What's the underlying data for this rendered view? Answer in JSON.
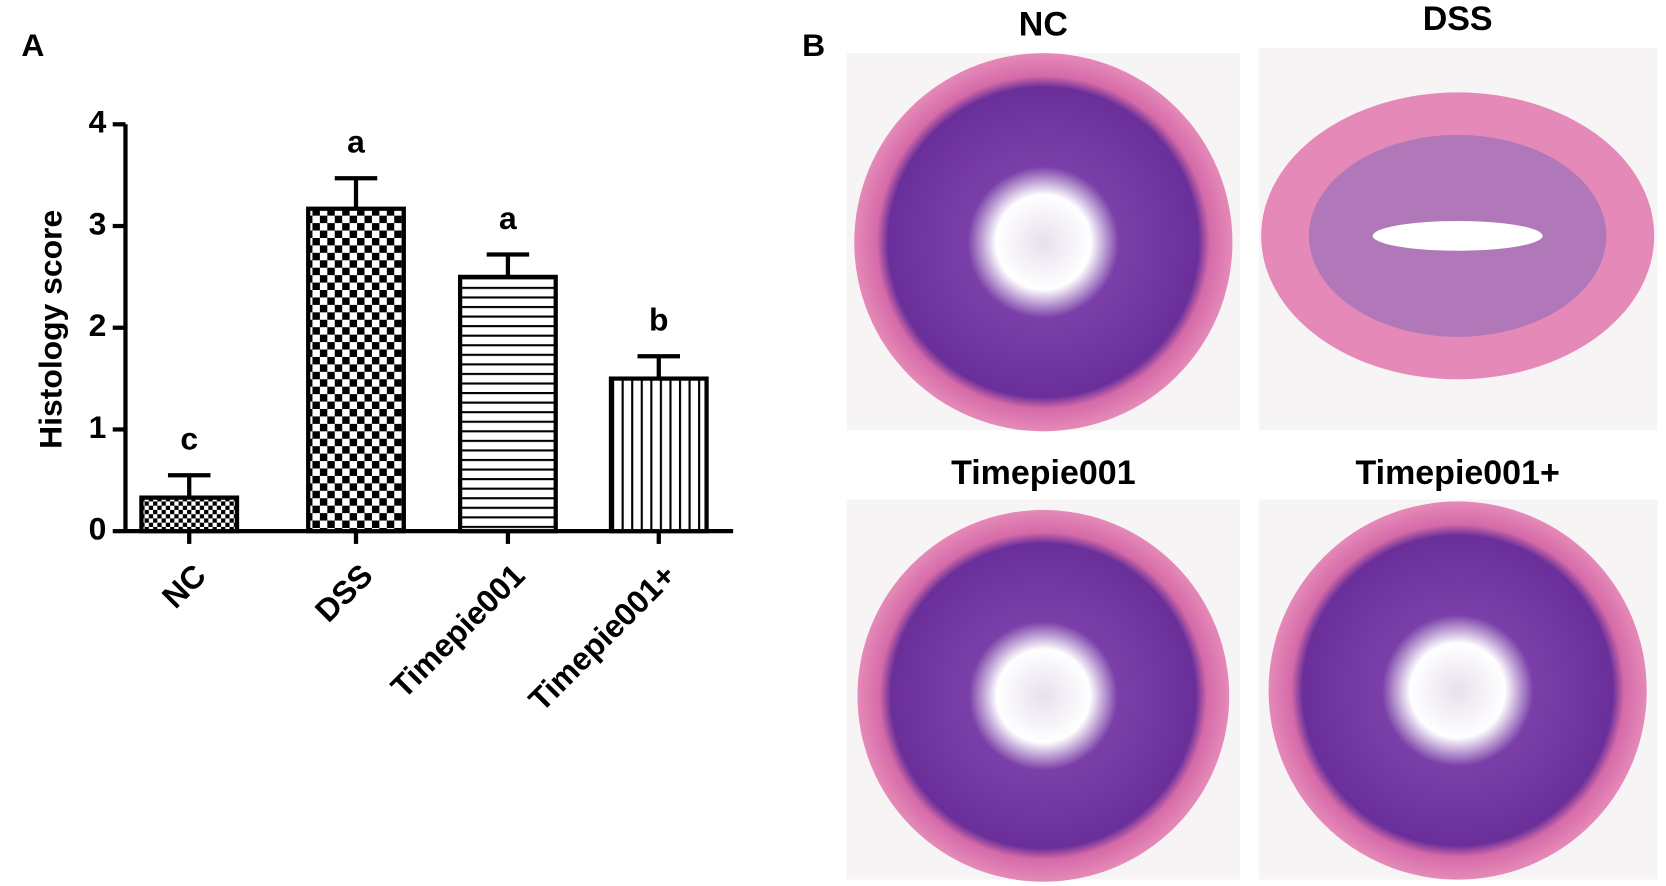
{
  "chart_data": {
    "type": "bar",
    "panel_label": "A",
    "ylabel": "Histology score",
    "categories": [
      "NC",
      "DSS",
      "Timepie001",
      "Timepie001+"
    ],
    "values": [
      0.33,
      3.17,
      2.5,
      1.5
    ],
    "errors": [
      0.22,
      0.3,
      0.22,
      0.22
    ],
    "annotations": [
      "c",
      "a",
      "a",
      "b"
    ],
    "color": "#000000",
    "ylim": [
      0,
      4
    ],
    "yticks": [
      0,
      1,
      2,
      3,
      4
    ],
    "grid": false
  },
  "panel_b": {
    "label": "B",
    "images": [
      {
        "title": "NC"
      },
      {
        "title": "DSS"
      },
      {
        "title": "Timepie001"
      },
      {
        "title": "Timepie001+"
      }
    ]
  }
}
